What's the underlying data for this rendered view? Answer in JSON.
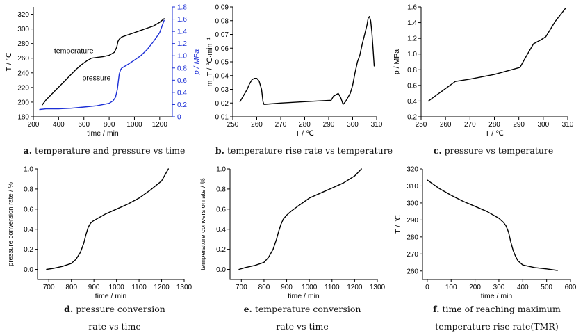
{
  "chart_data": [
    {
      "id": "a",
      "type": "line",
      "caption_label": "a.",
      "caption": "temperature and pressure vs time",
      "xlabel": "time / min",
      "ylabel": "T / ℃",
      "y2label": "p / MPa",
      "xlim": [
        200,
        1300
      ],
      "ylim": [
        180,
        330
      ],
      "y2lim": [
        0,
        1.8
      ],
      "xticks": [
        200,
        400,
        600,
        800,
        1000,
        1200
      ],
      "yticks": [
        180,
        200,
        220,
        240,
        260,
        280,
        300,
        320
      ],
      "y2ticks": [
        0,
        0.2,
        0.4,
        0.6,
        0.8,
        1.0,
        1.2,
        1.4,
        1.6,
        1.8
      ],
      "y2tick_labels": [
        "0",
        "0.2",
        "0.4",
        "0.6",
        "0.8",
        "1.0",
        "1.2",
        "1.4",
        "1.6",
        "1.8"
      ],
      "annotations": [
        "temperature",
        "pressure"
      ],
      "series": [
        {
          "name": "temperature",
          "axis": "left",
          "color": "#000000",
          "x": [
            270,
            300,
            340,
            380,
            420,
            460,
            500,
            540,
            580,
            620,
            660,
            700,
            750,
            800,
            840,
            860,
            870,
            880,
            900,
            950,
            1000,
            1050,
            1100,
            1150,
            1200,
            1235
          ],
          "y": [
            196,
            203,
            210,
            217,
            224,
            231,
            238,
            245,
            251,
            256,
            260,
            261,
            262,
            264,
            268,
            275,
            283,
            286,
            289,
            292,
            295,
            298,
            301,
            304,
            309,
            314
          ]
        },
        {
          "name": "pressure",
          "axis": "right",
          "color": "#1c2fd6",
          "x": [
            250,
            300,
            400,
            500,
            600,
            700,
            750,
            800,
            830,
            850,
            865,
            875,
            880,
            890,
            900,
            950,
            1000,
            1050,
            1100,
            1150,
            1200,
            1235
          ],
          "y": [
            0.12,
            0.13,
            0.13,
            0.14,
            0.16,
            0.18,
            0.2,
            0.22,
            0.26,
            0.32,
            0.45,
            0.62,
            0.7,
            0.77,
            0.8,
            0.86,
            0.93,
            1.0,
            1.1,
            1.23,
            1.38,
            1.58
          ]
        }
      ]
    },
    {
      "id": "b",
      "type": "line",
      "caption_label": "b.",
      "caption": "temperature rise rate vs temperature",
      "xlabel": "T / ℃",
      "ylabel": "m_T / ℃·min⁻¹",
      "xlim": [
        250,
        310
      ],
      "ylim": [
        0.01,
        0.09
      ],
      "xticks": [
        250,
        260,
        270,
        280,
        290,
        300,
        310
      ],
      "yticks": [
        0.01,
        0.02,
        0.03,
        0.04,
        0.05,
        0.06,
        0.07,
        0.08,
        0.09
      ],
      "ytick_labels": [
        "0.01",
        "0.02",
        "0.03",
        "0.04",
        "0.05",
        "0.06",
        "0.07",
        "0.08",
        "0.09"
      ],
      "series": [
        {
          "color": "#000000",
          "x": [
            253,
            254,
            255,
            256,
            257,
            258,
            259,
            260,
            261,
            262,
            262.6,
            263,
            270,
            280,
            291,
            292,
            293,
            294,
            295,
            296,
            297,
            299,
            300,
            301,
            302,
            303,
            304,
            305,
            306,
            306.5,
            307,
            307.5,
            308,
            308.5,
            309
          ],
          "y": [
            0.021,
            0.024,
            0.027,
            0.03,
            0.034,
            0.037,
            0.038,
            0.038,
            0.036,
            0.03,
            0.021,
            0.019,
            0.02,
            0.021,
            0.022,
            0.025,
            0.026,
            0.027,
            0.024,
            0.019,
            0.021,
            0.027,
            0.033,
            0.042,
            0.05,
            0.055,
            0.063,
            0.07,
            0.077,
            0.082,
            0.083,
            0.08,
            0.072,
            0.06,
            0.047
          ]
        }
      ]
    },
    {
      "id": "c",
      "type": "line",
      "caption_label": "c.",
      "caption": "pressure vs temperature",
      "xlabel": "T / ℃",
      "ylabel": "p / MPa",
      "xlim": [
        250,
        310
      ],
      "ylim": [
        0.2,
        1.6
      ],
      "xticks": [
        250,
        260,
        270,
        280,
        290,
        300,
        310
      ],
      "yticks": [
        0.2,
        0.4,
        0.6,
        0.8,
        1.0,
        1.2,
        1.4,
        1.6
      ],
      "ytick_labels": [
        "0.2",
        "0.4",
        "0.6",
        "0.8",
        "1.0",
        "1.2",
        "1.4",
        "1.6"
      ],
      "series": [
        {
          "color": "#000000",
          "x": [
            253,
            256,
            260,
            264,
            270,
            280,
            290.5,
            293,
            296,
            299,
            301,
            305,
            309
          ],
          "y": [
            0.4,
            0.47,
            0.56,
            0.65,
            0.68,
            0.74,
            0.83,
            0.97,
            1.13,
            1.18,
            1.22,
            1.42,
            1.58
          ]
        }
      ]
    },
    {
      "id": "d",
      "type": "line",
      "caption_label": "d.",
      "caption": "pressure conversion",
      "caption_line2": "rate vs time",
      "xlabel": "time / min",
      "ylabel": "pressure conversion rate / %",
      "xlim": [
        650,
        1300
      ],
      "ylim": [
        -0.1,
        1.0
      ],
      "xticks": [
        700,
        800,
        900,
        1000,
        1100,
        1200,
        1300
      ],
      "yticks": [
        0.0,
        0.2,
        0.4,
        0.6,
        0.8,
        1.0
      ],
      "ytick_labels": [
        "0.0",
        "0.2",
        "0.4",
        "0.6",
        "0.8",
        "1.0"
      ],
      "series": [
        {
          "color": "#000000",
          "x": [
            690,
            720,
            760,
            800,
            820,
            840,
            855,
            865,
            875,
            885,
            895,
            910,
            950,
            1000,
            1050,
            1100,
            1150,
            1200,
            1230
          ],
          "y": [
            0.0,
            0.01,
            0.03,
            0.06,
            0.1,
            0.17,
            0.26,
            0.35,
            0.42,
            0.46,
            0.48,
            0.5,
            0.55,
            0.6,
            0.65,
            0.71,
            0.79,
            0.88,
            1.0
          ]
        }
      ]
    },
    {
      "id": "e",
      "type": "line",
      "caption_label": "e.",
      "caption": "temperature conversion",
      "caption_line2": "rate vs time",
      "xlabel": "time / min",
      "ylabel": "temperature conversionrate / %",
      "xlim": [
        650,
        1300
      ],
      "ylim": [
        -0.1,
        1.0
      ],
      "xticks": [
        700,
        800,
        900,
        1000,
        1100,
        1200,
        1300
      ],
      "yticks": [
        0.0,
        0.2,
        0.4,
        0.6,
        0.8,
        1.0
      ],
      "ytick_labels": [
        "0.0",
        "0.2",
        "0.4",
        "0.6",
        "0.8",
        "1.0"
      ],
      "series": [
        {
          "color": "#000000",
          "x": [
            690,
            720,
            760,
            800,
            820,
            840,
            855,
            865,
            875,
            885,
            900,
            920,
            950,
            1000,
            1050,
            1100,
            1150,
            1200,
            1230
          ],
          "y": [
            0.0,
            0.02,
            0.04,
            0.07,
            0.12,
            0.2,
            0.3,
            0.38,
            0.45,
            0.5,
            0.54,
            0.58,
            0.63,
            0.71,
            0.76,
            0.81,
            0.86,
            0.93,
            1.0
          ]
        }
      ]
    },
    {
      "id": "f",
      "type": "line",
      "caption_label": "f.",
      "caption": "time of reaching maximum",
      "caption_line2": "temperature rise rate(TMR)",
      "xlabel": "time / min",
      "ylabel": "T / ℃",
      "xlim": [
        -20,
        600
      ],
      "ylim": [
        255,
        320
      ],
      "xticks": [
        0,
        100,
        200,
        300,
        400,
        500,
        600
      ],
      "yticks": [
        260,
        270,
        280,
        290,
        300,
        310,
        320
      ],
      "series": [
        {
          "color": "#000000",
          "x": [
            0,
            50,
            100,
            150,
            200,
            250,
            300,
            320,
            330,
            340,
            350,
            360,
            370,
            380,
            400,
            450,
            500,
            545
          ],
          "y": [
            313.5,
            308.5,
            304.5,
            301,
            298,
            295,
            291,
            288.5,
            286.5,
            283,
            277,
            272,
            268.5,
            266,
            263.5,
            262,
            261.2,
            260.3
          ]
        }
      ]
    }
  ]
}
